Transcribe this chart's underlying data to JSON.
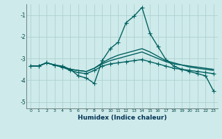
{
  "xlabel": "Humidex (Indice chaleur)",
  "background_color": "#ceeaea",
  "grid_color": "#a8cccc",
  "line_color": "#006060",
  "xlim": [
    -0.5,
    23.5
  ],
  "ylim": [
    -5.3,
    -0.5
  ],
  "yticks": [
    -5,
    -4,
    -3,
    -2,
    -1
  ],
  "xticks": [
    0,
    1,
    2,
    3,
    4,
    5,
    6,
    7,
    8,
    9,
    10,
    11,
    12,
    13,
    14,
    15,
    16,
    17,
    18,
    19,
    20,
    21,
    22,
    23
  ],
  "series1_y": [
    -3.35,
    -3.35,
    -3.2,
    -3.3,
    -3.35,
    -3.5,
    -3.8,
    -3.9,
    -4.15,
    -3.1,
    -2.55,
    -2.25,
    -1.35,
    -1.05,
    -0.65,
    -1.85,
    -2.45,
    -3.05,
    -3.35,
    -3.5,
    -3.6,
    -3.7,
    -3.8,
    -4.5
  ],
  "series2_y": [
    -3.35,
    -3.35,
    -3.2,
    -3.3,
    -3.4,
    -3.55,
    -3.65,
    -3.7,
    -3.55,
    -3.35,
    -3.25,
    -3.2,
    -3.15,
    -3.1,
    -3.05,
    -3.15,
    -3.25,
    -3.35,
    -3.45,
    -3.5,
    -3.55,
    -3.6,
    -3.65,
    -3.7
  ],
  "series3_y": [
    -3.35,
    -3.35,
    -3.2,
    -3.3,
    -3.4,
    -3.5,
    -3.55,
    -3.6,
    -3.45,
    -3.25,
    -3.1,
    -3.0,
    -2.9,
    -2.8,
    -2.7,
    -2.85,
    -3.0,
    -3.15,
    -3.25,
    -3.3,
    -3.4,
    -3.45,
    -3.5,
    -3.55
  ],
  "series4_y": [
    -3.35,
    -3.35,
    -3.2,
    -3.3,
    -3.4,
    -3.5,
    -3.55,
    -3.6,
    -3.45,
    -3.2,
    -3.0,
    -2.85,
    -2.75,
    -2.65,
    -2.55,
    -2.7,
    -2.9,
    -3.1,
    -3.2,
    -3.3,
    -3.35,
    -3.4,
    -3.45,
    -3.5
  ],
  "marker": "+",
  "markersize": 4,
  "linewidth": 1.0
}
